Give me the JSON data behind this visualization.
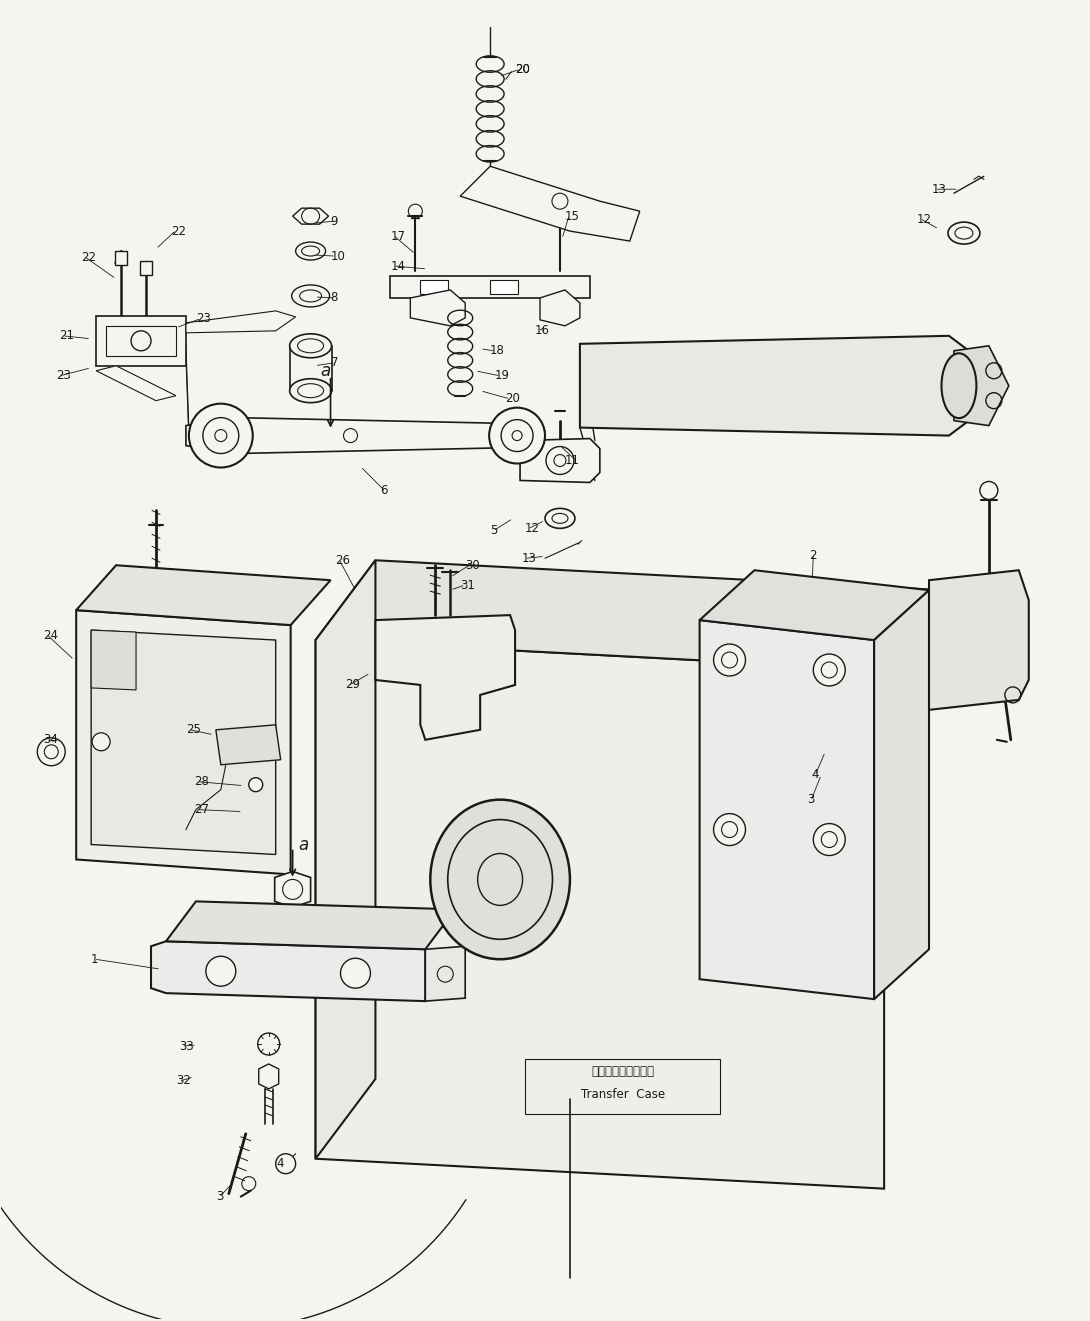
{
  "background_color": "#f5f5f0",
  "line_color": "#1a1a1a",
  "text_color": "#1a1a1a",
  "fig_width": 10.9,
  "fig_height": 13.21,
  "dpi": 100,
  "transfer_case_label_jp": "トランスファケース",
  "transfer_case_label_en": "Transfer  Case"
}
